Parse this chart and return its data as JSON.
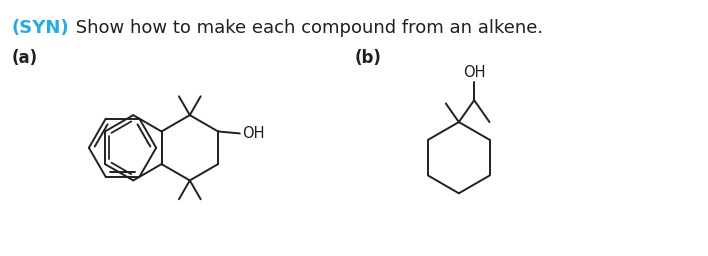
{
  "title_syn": "(SYN)",
  "title_text": " Show how to make each compound from an alkene.",
  "syn_color": "#29abe2",
  "text_color": "#231f20",
  "label_a": "(a)",
  "label_b": "(b)",
  "oh_color": "#231f20",
  "line_color": "#231f20",
  "bg_color": "#ffffff",
  "fig_width": 7.08,
  "fig_height": 2.56,
  "dpi": 100
}
